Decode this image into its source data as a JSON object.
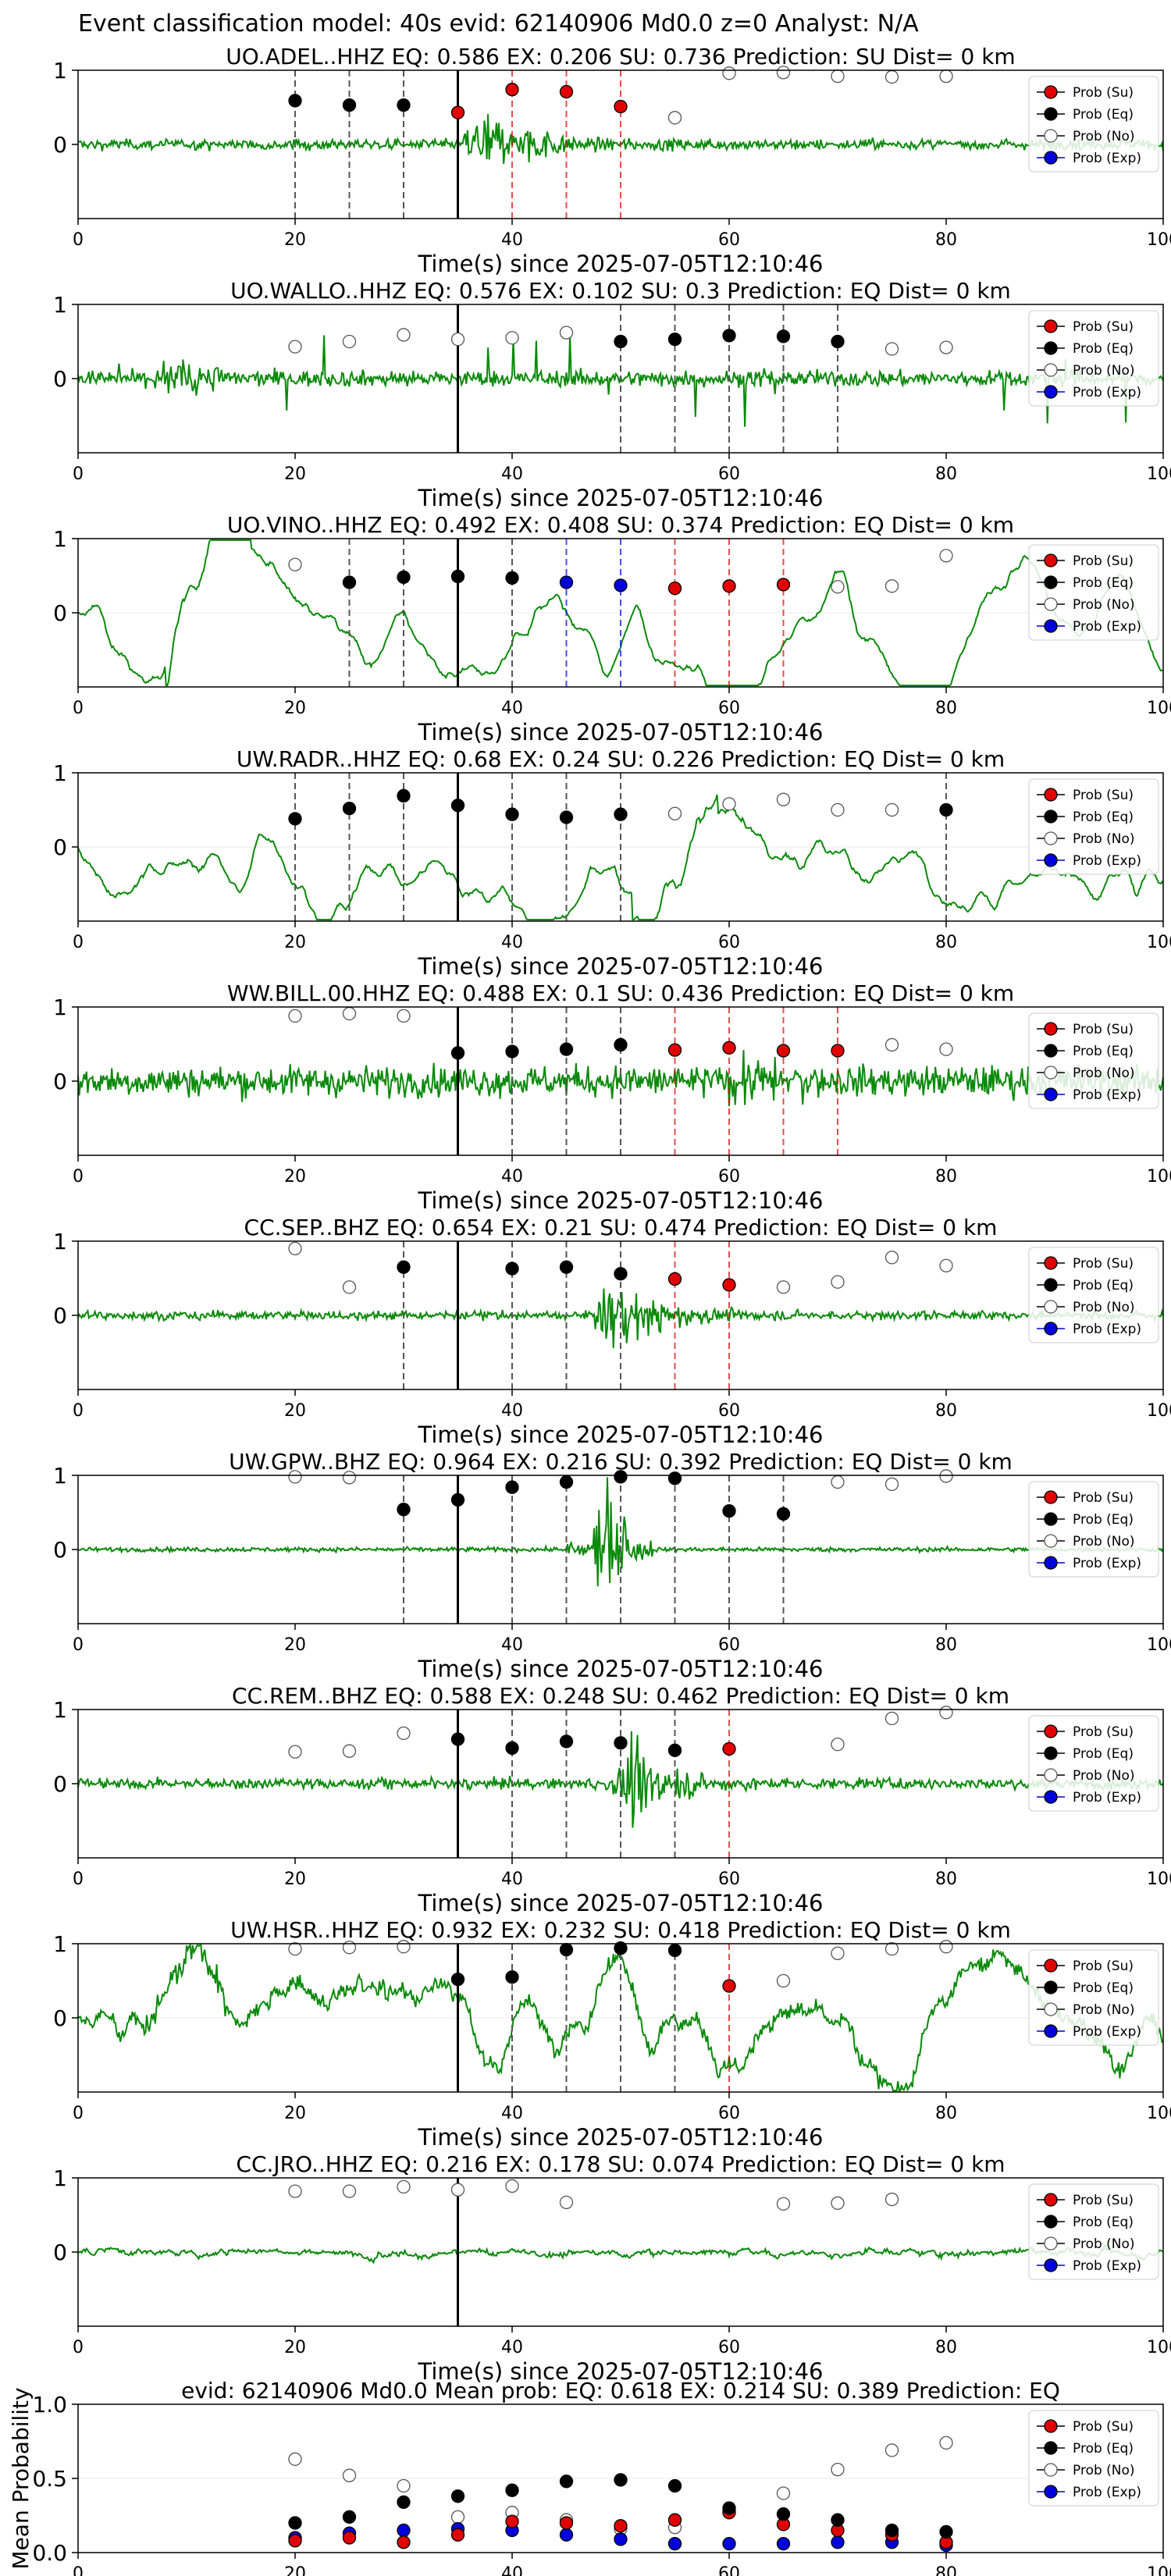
{
  "suptitle": "Event classification model: 40s evid: 62140906 Md0.0 z=0 Analyst: N/A",
  "xlabel": "Time(s) since 2025-07-05T12:10:46",
  "legend": [
    "Prob (Su)",
    "Prob (Eq)",
    "Prob (No)",
    "Prob (Exp)"
  ],
  "colors": {
    "su": "#e00000",
    "eq": "#000000",
    "no": "#ffffff",
    "exp": "#0000dd",
    "trace": "#0a8a0a",
    "vline": "#555555"
  },
  "chart_data": [
    {
      "type": "line",
      "title": "UO.ADEL..HHZ   EQ: 0.586  EX: 0.206  SU: 0.736   Prediction: SU    Dist= 0 km",
      "trace_style": "burst",
      "burst_center": 37,
      "noise": 0.12,
      "xlim": [
        0,
        100
      ],
      "ylim": [
        -1,
        1
      ],
      "yticks": [
        0,
        1
      ],
      "xticks": [
        0,
        20,
        40,
        60,
        80,
        100
      ],
      "points": {
        "su": [
          [
            35,
            0.43
          ],
          [
            40,
            0.74
          ],
          [
            45,
            0.71
          ],
          [
            50,
            0.51
          ]
        ],
        "eq": [
          [
            20,
            0.59
          ],
          [
            25,
            0.53
          ],
          [
            30,
            0.53
          ]
        ],
        "no": [
          [
            55,
            0.36
          ],
          [
            60,
            0.96
          ],
          [
            65,
            0.97
          ],
          [
            70,
            0.92
          ],
          [
            75,
            0.91
          ],
          [
            80,
            0.92
          ]
        ],
        "exp": []
      },
      "vlines": {
        "black": [
          35
        ],
        "grey": [
          20,
          25,
          30
        ],
        "red": [
          35,
          40,
          45,
          50
        ],
        "blue": []
      }
    },
    {
      "type": "line",
      "title": "UO.WALLO..HHZ   EQ: 0.576  EX: 0.102  SU: 0.3   Prediction: EQ    Dist= 0 km",
      "trace_style": "spiky",
      "burst_center": 10,
      "noise": 0.18,
      "xlim": [
        0,
        100
      ],
      "ylim": [
        -1,
        1
      ],
      "yticks": [
        0,
        1
      ],
      "xticks": [
        0,
        20,
        40,
        60,
        80,
        100
      ],
      "points": {
        "su": [],
        "eq": [
          [
            50,
            0.5
          ],
          [
            55,
            0.53
          ],
          [
            60,
            0.58
          ],
          [
            65,
            0.57
          ],
          [
            70,
            0.5
          ]
        ],
        "no": [
          [
            20,
            0.43
          ],
          [
            25,
            0.5
          ],
          [
            30,
            0.59
          ],
          [
            35,
            0.53
          ],
          [
            40,
            0.55
          ],
          [
            45,
            0.62
          ],
          [
            75,
            0.4
          ],
          [
            80,
            0.42
          ]
        ],
        "exp": []
      },
      "vlines": {
        "black": [
          35
        ],
        "grey": [
          50,
          55,
          60,
          65,
          70
        ],
        "red": [],
        "blue": []
      }
    },
    {
      "type": "line",
      "title": "UO.VINO..HHZ   EQ: 0.492  EX: 0.408  SU: 0.374   Prediction: EQ    Dist= 0 km",
      "trace_style": "wave",
      "burst_center": 12,
      "noise": 0.5,
      "xlim": [
        0,
        100
      ],
      "ylim": [
        -1,
        1
      ],
      "yticks": [
        0,
        1
      ],
      "xticks": [
        0,
        20,
        40,
        60,
        80,
        100
      ],
      "points": {
        "su": [
          [
            55,
            0.33
          ],
          [
            60,
            0.36
          ],
          [
            65,
            0.38
          ]
        ],
        "eq": [
          [
            25,
            0.41
          ],
          [
            30,
            0.48
          ],
          [
            35,
            0.49
          ],
          [
            40,
            0.47
          ]
        ],
        "no": [
          [
            20,
            0.65
          ],
          [
            70,
            0.35
          ],
          [
            75,
            0.36
          ],
          [
            80,
            0.77
          ]
        ],
        "exp": [
          [
            45,
            0.41
          ],
          [
            50,
            0.37
          ]
        ]
      },
      "vlines": {
        "black": [
          35
        ],
        "grey": [
          25,
          30,
          40
        ],
        "red": [
          55,
          60,
          65
        ],
        "blue": [
          45,
          50
        ]
      }
    },
    {
      "type": "line",
      "title": "UW.RADR..HHZ   EQ: 0.68  EX: 0.24  SU: 0.226   Prediction: EQ    Dist= 0 km",
      "trace_style": "wave",
      "burst_center": 55,
      "noise": 0.55,
      "xlim": [
        0,
        100
      ],
      "ylim": [
        -1,
        1
      ],
      "yticks": [
        0,
        1
      ],
      "xticks": [
        0,
        20,
        40,
        60,
        80,
        100
      ],
      "points": {
        "su": [],
        "eq": [
          [
            20,
            0.38
          ],
          [
            25,
            0.52
          ],
          [
            30,
            0.69
          ],
          [
            35,
            0.56
          ],
          [
            40,
            0.44
          ],
          [
            45,
            0.4
          ],
          [
            50,
            0.44
          ],
          [
            80,
            0.5
          ]
        ],
        "no": [
          [
            55,
            0.45
          ],
          [
            60,
            0.58
          ],
          [
            65,
            0.64
          ],
          [
            70,
            0.5
          ],
          [
            75,
            0.5
          ]
        ],
        "exp": []
      },
      "vlines": {
        "black": [
          35
        ],
        "grey": [
          20,
          25,
          30,
          40,
          45,
          50,
          80
        ],
        "red": [],
        "blue": []
      }
    },
    {
      "type": "line",
      "title": "WW.BILL.00.HHZ   EQ: 0.488  EX: 0.1  SU: 0.436   Prediction: EQ    Dist= 0 km",
      "trace_style": "noisy",
      "burst_center": 62,
      "noise": 0.35,
      "xlim": [
        0,
        100
      ],
      "ylim": [
        -1,
        1
      ],
      "yticks": [
        0,
        1
      ],
      "xticks": [
        0,
        20,
        40,
        60,
        80,
        100
      ],
      "points": {
        "su": [
          [
            55,
            0.42
          ],
          [
            60,
            0.45
          ],
          [
            65,
            0.41
          ],
          [
            70,
            0.41
          ]
        ],
        "eq": [
          [
            35,
            0.38
          ],
          [
            40,
            0.4
          ],
          [
            45,
            0.43
          ],
          [
            50,
            0.49
          ]
        ],
        "no": [
          [
            20,
            0.88
          ],
          [
            25,
            0.91
          ],
          [
            30,
            0.88
          ],
          [
            75,
            0.49
          ],
          [
            80,
            0.43
          ]
        ],
        "exp": []
      },
      "vlines": {
        "black": [
          35
        ],
        "grey": [
          40,
          45,
          50
        ],
        "red": [
          55,
          60,
          65,
          70
        ],
        "blue": []
      }
    },
    {
      "type": "line",
      "title": "CC.SEP..BHZ   EQ: 0.654  EX: 0.21  SU: 0.474   Prediction: EQ    Dist= 0 km",
      "trace_style": "burst",
      "burst_center": 49,
      "noise": 0.1,
      "xlim": [
        0,
        100
      ],
      "ylim": [
        -1,
        1
      ],
      "yticks": [
        0,
        1
      ],
      "xticks": [
        0,
        20,
        40,
        60,
        80,
        100
      ],
      "points": {
        "su": [
          [
            55,
            0.49
          ],
          [
            60,
            0.41
          ]
        ],
        "eq": [
          [
            30,
            0.65
          ],
          [
            40,
            0.63
          ],
          [
            45,
            0.65
          ],
          [
            50,
            0.56
          ]
        ],
        "no": [
          [
            20,
            0.9
          ],
          [
            25,
            0.38
          ],
          [
            65,
            0.38
          ],
          [
            70,
            0.45
          ],
          [
            75,
            0.78
          ],
          [
            80,
            0.67
          ]
        ],
        "exp": []
      },
      "vlines": {
        "black": [
          35
        ],
        "grey": [
          30,
          40,
          45,
          50
        ],
        "red": [
          55,
          60
        ],
        "blue": []
      }
    },
    {
      "type": "line",
      "title": "UW.GPW..BHZ   EQ: 0.964  EX: 0.216  SU: 0.392   Prediction: EQ    Dist= 0 km",
      "trace_style": "spike",
      "burst_center": 49,
      "noise": 0.05,
      "xlim": [
        0,
        100
      ],
      "ylim": [
        -1,
        1
      ],
      "yticks": [
        0,
        1
      ],
      "xticks": [
        0,
        20,
        40,
        60,
        80,
        100
      ],
      "points": {
        "su": [],
        "eq": [
          [
            30,
            0.54
          ],
          [
            35,
            0.67
          ],
          [
            40,
            0.84
          ],
          [
            45,
            0.91
          ],
          [
            50,
            0.98
          ],
          [
            55,
            0.96
          ],
          [
            60,
            0.52
          ],
          [
            65,
            0.48
          ]
        ],
        "no": [
          [
            20,
            0.98
          ],
          [
            25,
            0.97
          ],
          [
            70,
            0.91
          ],
          [
            75,
            0.88
          ],
          [
            80,
            0.99
          ]
        ],
        "exp": []
      },
      "vlines": {
        "black": [
          35
        ],
        "grey": [
          30,
          40,
          45,
          50,
          55,
          60,
          65
        ],
        "red": [],
        "blue": []
      }
    },
    {
      "type": "line",
      "title": "CC.REM..BHZ   EQ: 0.588  EX: 0.248  SU: 0.462   Prediction: EQ    Dist= 0 km",
      "trace_style": "burst",
      "burst_center": 51,
      "noise": 0.12,
      "xlim": [
        0,
        100
      ],
      "ylim": [
        -1,
        1
      ],
      "yticks": [
        0,
        1
      ],
      "xticks": [
        0,
        20,
        40,
        60,
        80,
        100
      ],
      "points": {
        "su": [
          [
            60,
            0.47
          ]
        ],
        "eq": [
          [
            35,
            0.6
          ],
          [
            40,
            0.48
          ],
          [
            45,
            0.57
          ],
          [
            50,
            0.55
          ],
          [
            55,
            0.45
          ]
        ],
        "no": [
          [
            20,
            0.43
          ],
          [
            25,
            0.44
          ],
          [
            30,
            0.68
          ],
          [
            70,
            0.53
          ],
          [
            75,
            0.88
          ],
          [
            80,
            0.96
          ]
        ],
        "exp": []
      },
      "vlines": {
        "black": [
          35
        ],
        "grey": [
          40,
          45,
          50,
          55
        ],
        "red": [
          60
        ],
        "blue": []
      }
    },
    {
      "type": "line",
      "title": "UW.HSR..HHZ   EQ: 0.932  EX: 0.232  SU: 0.418   Prediction: EQ    Dist= 0 km",
      "trace_style": "noisywave",
      "burst_center": 10,
      "noise": 0.45,
      "xlim": [
        0,
        100
      ],
      "ylim": [
        -1,
        1
      ],
      "yticks": [
        0,
        1
      ],
      "xticks": [
        0,
        20,
        40,
        60,
        80,
        100
      ],
      "points": {
        "su": [
          [
            60,
            0.43
          ]
        ],
        "eq": [
          [
            35,
            0.52
          ],
          [
            40,
            0.55
          ],
          [
            45,
            0.92
          ],
          [
            50,
            0.94
          ],
          [
            55,
            0.91
          ]
        ],
        "no": [
          [
            20,
            0.93
          ],
          [
            25,
            0.95
          ],
          [
            30,
            0.96
          ],
          [
            65,
            0.5
          ],
          [
            70,
            0.87
          ],
          [
            75,
            0.93
          ],
          [
            80,
            0.96
          ]
        ],
        "exp": []
      },
      "vlines": {
        "black": [
          35
        ],
        "grey": [
          40,
          45,
          50,
          55
        ],
        "red": [
          60
        ],
        "blue": []
      }
    },
    {
      "type": "line",
      "title": "CC.JRO..HHZ   EQ: 0.216  EX: 0.178  SU: 0.074   Prediction: EQ    Dist= 0 km",
      "trace_style": "calm",
      "burst_center": 0,
      "noise": 0.1,
      "xlim": [
        0,
        100
      ],
      "ylim": [
        -1,
        1
      ],
      "yticks": [
        0,
        1
      ],
      "xticks": [
        0,
        20,
        40,
        60,
        80,
        100
      ],
      "points": {
        "su": [],
        "eq": [],
        "no": [
          [
            20,
            0.82
          ],
          [
            25,
            0.82
          ],
          [
            30,
            0.88
          ],
          [
            35,
            0.84
          ],
          [
            40,
            0.89
          ],
          [
            45,
            0.67
          ],
          [
            65,
            0.65
          ],
          [
            70,
            0.66
          ],
          [
            75,
            0.71
          ]
        ],
        "exp": []
      },
      "vlines": {
        "black": [
          35
        ],
        "grey": [],
        "red": [],
        "blue": []
      }
    },
    {
      "type": "scatter",
      "title": "evid: 62140906   Md0.0   Mean prob:   EQ: 0.618  EX: 0.214  SU: 0.389   Prediction: EQ",
      "ylabel": "Mean Probability",
      "xlim": [
        0,
        100
      ],
      "ylim": [
        0,
        1
      ],
      "yticks": [
        0,
        0.5,
        1
      ],
      "ytick_labels": [
        "0.0",
        "0.5",
        "1.0"
      ],
      "xticks": [
        0,
        20,
        40,
        60,
        80,
        100
      ],
      "points": {
        "su": [
          [
            20,
            0.08
          ],
          [
            25,
            0.1
          ],
          [
            30,
            0.07
          ],
          [
            35,
            0.12
          ],
          [
            40,
            0.21
          ],
          [
            45,
            0.2
          ],
          [
            50,
            0.18
          ],
          [
            55,
            0.22
          ],
          [
            60,
            0.27
          ],
          [
            65,
            0.19
          ],
          [
            70,
            0.15
          ],
          [
            75,
            0.12
          ],
          [
            80,
            0.07
          ]
        ],
        "eq": [
          [
            20,
            0.2
          ],
          [
            25,
            0.24
          ],
          [
            30,
            0.34
          ],
          [
            35,
            0.38
          ],
          [
            40,
            0.42
          ],
          [
            45,
            0.48
          ],
          [
            50,
            0.49
          ],
          [
            55,
            0.45
          ],
          [
            60,
            0.3
          ],
          [
            65,
            0.26
          ],
          [
            70,
            0.22
          ],
          [
            75,
            0.15
          ],
          [
            80,
            0.14
          ]
        ],
        "no": [
          [
            20,
            0.63
          ],
          [
            25,
            0.52
          ],
          [
            30,
            0.45
          ],
          [
            35,
            0.24
          ],
          [
            40,
            0.27
          ],
          [
            45,
            0.22
          ],
          [
            50,
            0.16
          ],
          [
            55,
            0.17
          ],
          [
            60,
            0.28
          ],
          [
            65,
            0.4
          ],
          [
            70,
            0.56
          ],
          [
            75,
            0.69
          ],
          [
            80,
            0.74
          ]
        ],
        "exp": [
          [
            20,
            0.1
          ],
          [
            25,
            0.13
          ],
          [
            30,
            0.15
          ],
          [
            35,
            0.16
          ],
          [
            40,
            0.15
          ],
          [
            45,
            0.12
          ],
          [
            50,
            0.09
          ],
          [
            55,
            0.06
          ],
          [
            60,
            0.06
          ],
          [
            65,
            0.06
          ],
          [
            70,
            0.07
          ],
          [
            75,
            0.07
          ],
          [
            80,
            0.05
          ]
        ]
      }
    }
  ]
}
